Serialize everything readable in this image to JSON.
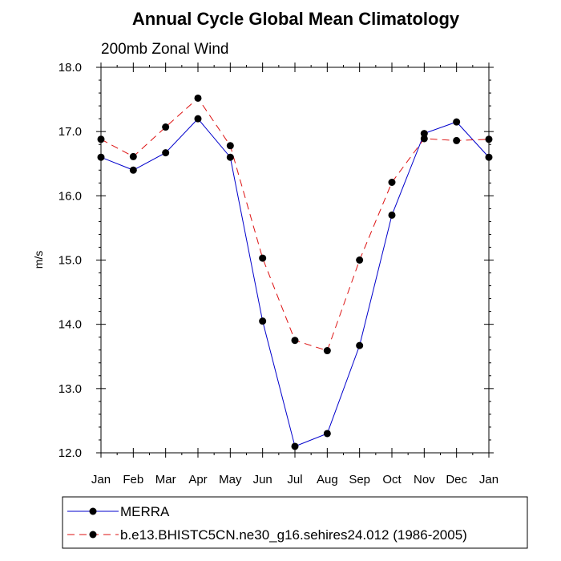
{
  "chart_data": {
    "type": "line",
    "title": "Annual Cycle Global Mean Climatology",
    "subtitle": "200mb Zonal Wind",
    "xlabel": "",
    "ylabel": "m/s",
    "categories": [
      "Jan",
      "Feb",
      "Mar",
      "Apr",
      "May",
      "Jun",
      "Jul",
      "Aug",
      "Sep",
      "Oct",
      "Nov",
      "Dec",
      "Jan"
    ],
    "ylim": [
      12.0,
      18.0
    ],
    "yticks": [
      12.0,
      13.0,
      14.0,
      15.0,
      16.0,
      17.0,
      18.0
    ],
    "ytick_labels": [
      "12.0",
      "13.0",
      "14.0",
      "15.0",
      "16.0",
      "17.0",
      "18.0"
    ],
    "grid": false,
    "legend_position": "bottom",
    "series": [
      {
        "name": "MERRA",
        "color": "#0000cc",
        "style": "solid",
        "marker": "circle",
        "values": [
          16.6,
          16.4,
          16.67,
          17.2,
          16.6,
          14.05,
          12.1,
          12.3,
          13.67,
          15.7,
          16.97,
          17.15,
          16.6
        ]
      },
      {
        "name": "b.e13.BHISTC5CN.ne30_g16.sehires24.012 (1986-2005)",
        "color": "#dd1111",
        "style": "dashed",
        "marker": "circle",
        "values": [
          16.88,
          16.61,
          17.07,
          17.52,
          16.78,
          15.03,
          13.75,
          13.59,
          15.0,
          16.21,
          16.89,
          16.86,
          16.88
        ]
      }
    ]
  }
}
